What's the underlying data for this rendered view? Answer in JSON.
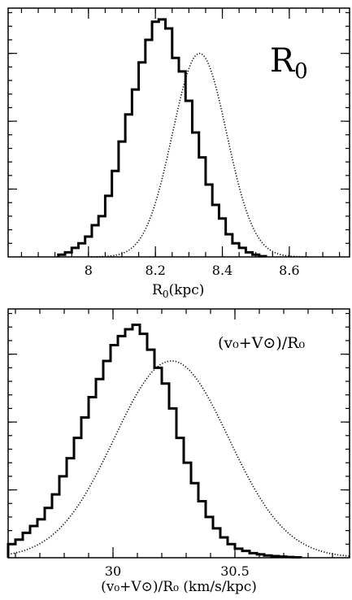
{
  "chart_data": [
    {
      "type": "histogram",
      "panel_label": {
        "main": "R",
        "sub": "0"
      },
      "xlabel": {
        "main": "R",
        "sub": "0",
        "rest": "(kpc)"
      },
      "ylabel": "",
      "xlim": [
        7.76,
        8.78
      ],
      "ylim": [
        0,
        1.1
      ],
      "x_ticks": [
        {
          "v": 8,
          "label": "8"
        },
        {
          "v": 8.2,
          "label": "8.2"
        },
        {
          "v": 8.4,
          "label": "8.4"
        },
        {
          "v": 8.6,
          "label": "8.6"
        }
      ],
      "x_minor_step": 0.05,
      "y_ticks": [
        0.3,
        0.6,
        0.9
      ],
      "y_minor_step": 0.06,
      "series": [
        {
          "style": "solid-step",
          "bin_edges": [
            7.91,
            7.93,
            7.95,
            7.97,
            7.99,
            8.01,
            8.03,
            8.05,
            8.07,
            8.09,
            8.11,
            8.13,
            8.15,
            8.17,
            8.19,
            8.21,
            8.23,
            8.25,
            8.27,
            8.29,
            8.31,
            8.33,
            8.35,
            8.37,
            8.39,
            8.41,
            8.43,
            8.45,
            8.47,
            8.49,
            8.51,
            8.53
          ],
          "counts": [
            0.01,
            0.02,
            0.04,
            0.06,
            0.09,
            0.14,
            0.18,
            0.27,
            0.38,
            0.51,
            0.63,
            0.74,
            0.86,
            0.96,
            1.04,
            1.05,
            1.01,
            0.88,
            0.82,
            0.69,
            0.55,
            0.44,
            0.32,
            0.23,
            0.17,
            0.1,
            0.06,
            0.04,
            0.02,
            0.01,
            0.003
          ]
        },
        {
          "style": "dotted-curve",
          "gaussian": {
            "mean": 8.332,
            "sigma": 0.081,
            "peak": 0.9
          }
        }
      ]
    },
    {
      "type": "histogram",
      "panel_label": {
        "text": "(v₀+V⊙)/R₀"
      },
      "xlabel": {
        "text": "(v₀+V⊙)/R₀ (km/s/kpc)"
      },
      "ylabel": "",
      "xlim": [
        29.57,
        30.97
      ],
      "ylim": [
        0,
        1.1
      ],
      "x_ticks": [
        {
          "v": 30.0,
          "label": "30"
        },
        {
          "v": 30.5,
          "label": "30.5"
        }
      ],
      "x_minor_step": 0.1,
      "y_ticks": [
        0.3,
        0.6,
        0.9
      ],
      "y_minor_step": 0.06,
      "series": [
        {
          "style": "solid-step",
          "bin_edges": [
            29.57,
            29.6,
            29.63,
            29.66,
            29.69,
            29.72,
            29.75,
            29.78,
            29.81,
            29.84,
            29.87,
            29.9,
            29.93,
            29.96,
            29.99,
            30.02,
            30.05,
            30.08,
            30.11,
            30.14,
            30.17,
            30.2,
            30.23,
            30.26,
            30.29,
            30.32,
            30.35,
            30.38,
            30.41,
            30.44,
            30.47,
            30.5,
            30.53,
            30.56,
            30.59,
            30.62,
            30.65,
            30.68,
            30.71,
            30.74,
            30.77
          ],
          "counts": [
            0.06,
            0.08,
            0.11,
            0.14,
            0.17,
            0.22,
            0.28,
            0.36,
            0.44,
            0.53,
            0.62,
            0.71,
            0.79,
            0.87,
            0.94,
            0.98,
            1.01,
            1.03,
            0.99,
            0.92,
            0.84,
            0.77,
            0.66,
            0.53,
            0.42,
            0.33,
            0.25,
            0.18,
            0.13,
            0.09,
            0.06,
            0.04,
            0.03,
            0.02,
            0.015,
            0.01,
            0.007,
            0.005,
            0.003,
            0.002
          ]
        },
        {
          "style": "dotted-curve",
          "gaussian": {
            "mean": 30.24,
            "sigma": 0.235,
            "peak": 0.87
          }
        }
      ]
    }
  ]
}
